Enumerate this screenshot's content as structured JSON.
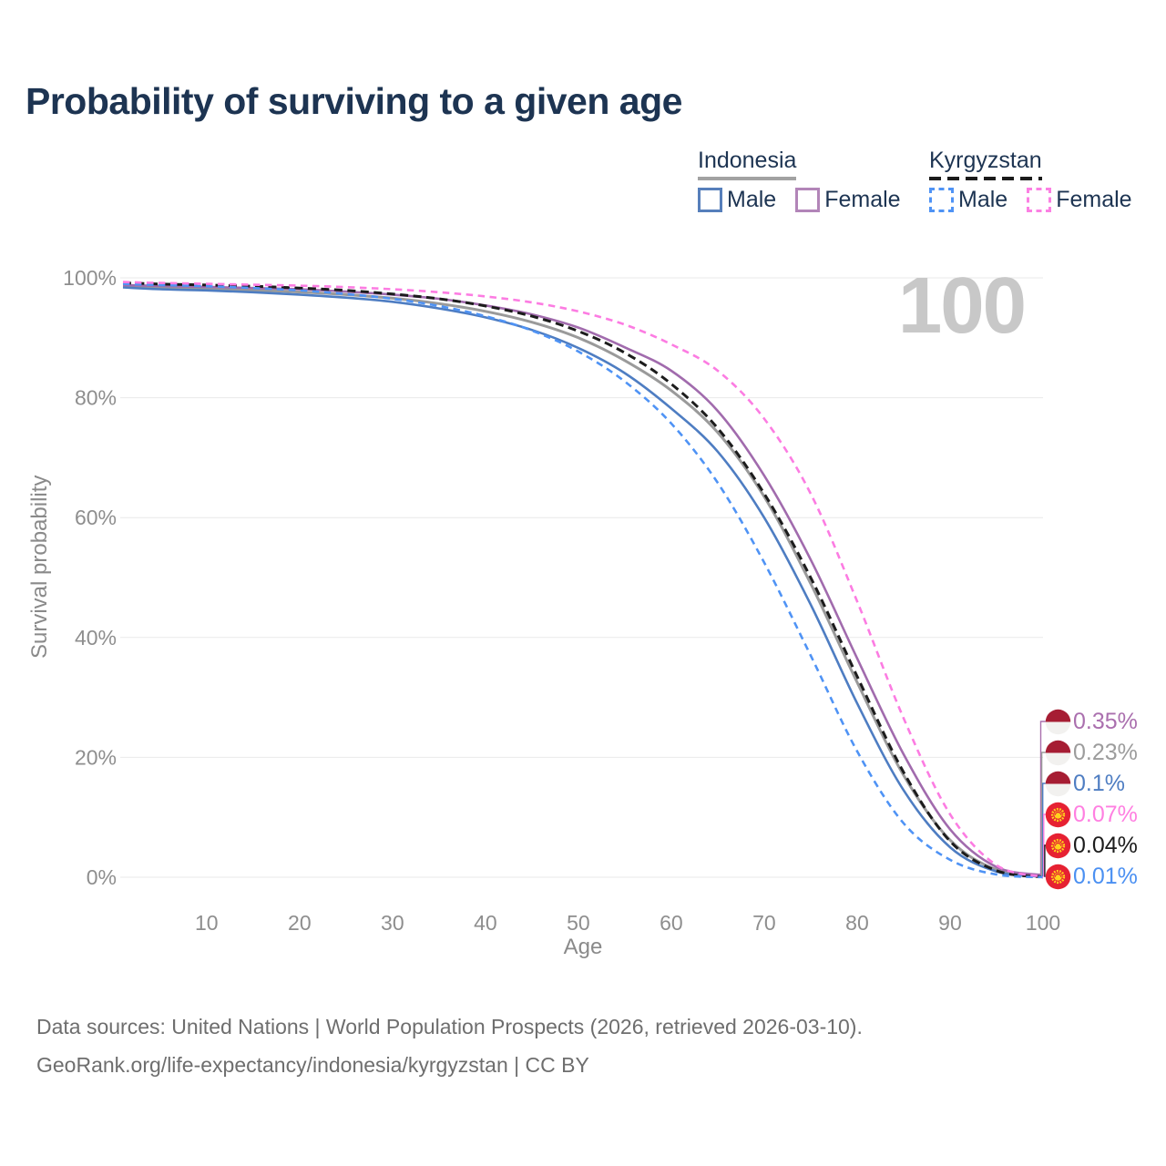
{
  "title": "Probability of surviving to a given age",
  "watermark": "100",
  "legend": {
    "groups": [
      {
        "country": "Indonesia",
        "line_style": "solid",
        "line_color": "#a2a2a2",
        "items": [
          {
            "label": "Male",
            "color": "#567fbb",
            "dash": false
          },
          {
            "label": "Female",
            "color": "#b285b8",
            "dash": false
          }
        ]
      },
      {
        "country": "Kyrgyzstan",
        "line_style": "dashed",
        "line_color": "#1b1b1b",
        "items": [
          {
            "label": "Male",
            "color": "#4f93f5",
            "dash": true
          },
          {
            "label": "Female",
            "color": "#fb80e3",
            "dash": true
          }
        ]
      }
    ]
  },
  "chart_data": {
    "type": "line",
    "title": "Probability of surviving to a given age",
    "xlabel": "Age",
    "ylabel": "Survival probability",
    "xlim": [
      1,
      100
    ],
    "ylim": [
      0,
      100
    ],
    "grid": "horizontal",
    "x_ticks": [
      10,
      20,
      30,
      40,
      50,
      60,
      70,
      80,
      90,
      100
    ],
    "y_ticks": [
      "0%",
      "20%",
      "40%",
      "60%",
      "80%",
      "100%"
    ],
    "ages": [
      1,
      5,
      10,
      15,
      20,
      25,
      30,
      35,
      40,
      45,
      50,
      55,
      60,
      65,
      70,
      75,
      80,
      85,
      90,
      95,
      100
    ],
    "series": [
      {
        "name": "Indonesia Male",
        "country": "Indonesia",
        "sex": "Male",
        "color": "#4e7dc2",
        "dashed": false,
        "end_value_pct": 0.1,
        "values": [
          98.4,
          98.1,
          97.9,
          97.6,
          97.2,
          96.7,
          96.0,
          94.9,
          93.4,
          91.3,
          88.3,
          84.1,
          78.2,
          71.0,
          60.0,
          45.5,
          29.0,
          14.5,
          5.0,
          0.95,
          0.1
        ]
      },
      {
        "name": "Indonesia Female",
        "country": "Indonesia",
        "sex": "Female",
        "color": "#a16bad",
        "dashed": false,
        "end_value_pct": 0.35,
        "values": [
          98.8,
          98.65,
          98.5,
          98.3,
          98.1,
          97.7,
          97.2,
          96.5,
          95.4,
          93.9,
          91.7,
          88.4,
          84.5,
          77.8,
          67.0,
          53.0,
          36.5,
          20.5,
          8.0,
          1.7,
          0.35
        ]
      },
      {
        "name": "Indonesia Both",
        "country": "Indonesia",
        "sex": "Both",
        "color": "#9a9a9a",
        "dashed": false,
        "end_value_pct": 0.23,
        "values": [
          98.6,
          98.4,
          98.2,
          97.95,
          97.65,
          97.2,
          96.6,
          95.7,
          94.4,
          92.6,
          90.0,
          86.2,
          81.2,
          74.2,
          63.5,
          49.0,
          32.5,
          17.0,
          6.2,
          1.25,
          0.23
        ]
      },
      {
        "name": "Kyrgyzstan Male",
        "country": "Kyrgyzstan",
        "sex": "Male",
        "color": "#4f93f5",
        "dashed": true,
        "end_value_pct": 0.01,
        "values": [
          99.0,
          98.8,
          98.6,
          98.3,
          97.9,
          97.3,
          96.5,
          95.3,
          93.6,
          91.2,
          87.7,
          82.7,
          75.7,
          65.8,
          52.5,
          37.0,
          21.0,
          9.0,
          2.9,
          0.45,
          0.01
        ]
      },
      {
        "name": "Kyrgyzstan Female",
        "country": "Kyrgyzstan",
        "sex": "Female",
        "color": "#fc7ce2",
        "dashed": true,
        "end_value_pct": 0.07,
        "values": [
          99.3,
          99.15,
          99.0,
          98.85,
          98.7,
          98.45,
          98.1,
          97.6,
          96.9,
          95.9,
          94.4,
          92.2,
          88.9,
          84.5,
          76.5,
          64.0,
          46.0,
          26.5,
          10.5,
          2.0,
          0.07
        ]
      },
      {
        "name": "Kyrgyzstan Both",
        "country": "Kyrgyzstan",
        "sex": "Both",
        "color": "#1c1c1c",
        "dashed": true,
        "end_value_pct": 0.04,
        "values": [
          99.15,
          98.97,
          98.8,
          98.6,
          98.3,
          97.9,
          97.3,
          96.5,
          95.3,
          93.6,
          91.1,
          87.5,
          82.3,
          74.9,
          64.0,
          50.0,
          33.5,
          17.5,
          6.0,
          1.1,
          0.04
        ]
      }
    ]
  },
  "end_labels": [
    {
      "text": "0.35%",
      "value": 0.35,
      "color": "#aa6fae",
      "flag": "indonesia",
      "series": "Indonesia Female"
    },
    {
      "text": "0.23%",
      "value": 0.23,
      "color": "#9c9c9c",
      "flag": "indonesia",
      "series": "Indonesia Both"
    },
    {
      "text": "0.1%",
      "value": 0.1,
      "color": "#4e7dc2",
      "flag": "indonesia",
      "series": "Indonesia Male"
    },
    {
      "text": "0.07%",
      "value": 0.07,
      "color": "#ff7fe1",
      "flag": "kyrgyzstan",
      "series": "Kyrgyzstan Female"
    },
    {
      "text": "0.04%",
      "value": 0.04,
      "color": "#1c1c1c",
      "flag": "kyrgyzstan",
      "series": "Kyrgyzstan Both"
    },
    {
      "text": "0.01%",
      "value": 0.01,
      "color": "#4b90f2",
      "flag": "kyrgyzstan",
      "series": "Kyrgyzstan Male"
    }
  ],
  "footer": {
    "line1": "Data sources: United Nations | World Population Prospects (2026, retrieved 2026-03-10).",
    "line2": "GeoRank.org/life-expectancy/indonesia/kyrgyzstan | CC BY"
  }
}
